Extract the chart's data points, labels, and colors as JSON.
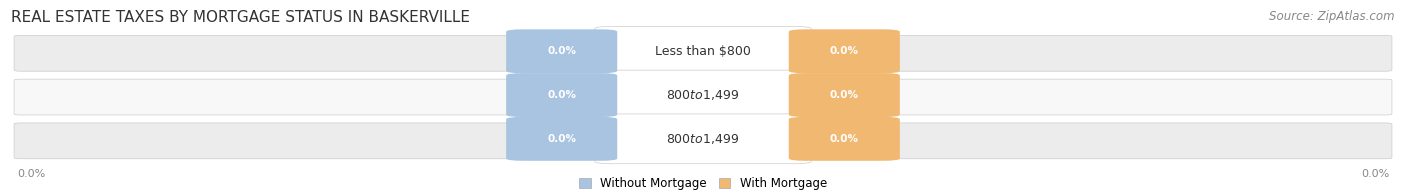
{
  "title": "REAL ESTATE TAXES BY MORTGAGE STATUS IN BASKERVILLE",
  "source": "Source: ZipAtlas.com",
  "categories": [
    "Less than $800",
    "$800 to $1,499",
    "$800 to $1,499"
  ],
  "without_mortgage_color": "#a8c4e0",
  "with_mortgage_color": "#f0b870",
  "row_bg_colors": [
    "#ececec",
    "#f8f8f8",
    "#ececec"
  ],
  "title_fontsize": 11,
  "source_fontsize": 8.5,
  "legend_label_without": "Without Mortgage",
  "legend_label_with": "With Mortgage",
  "figwidth": 14.06,
  "figheight": 1.96,
  "dpi": 100
}
